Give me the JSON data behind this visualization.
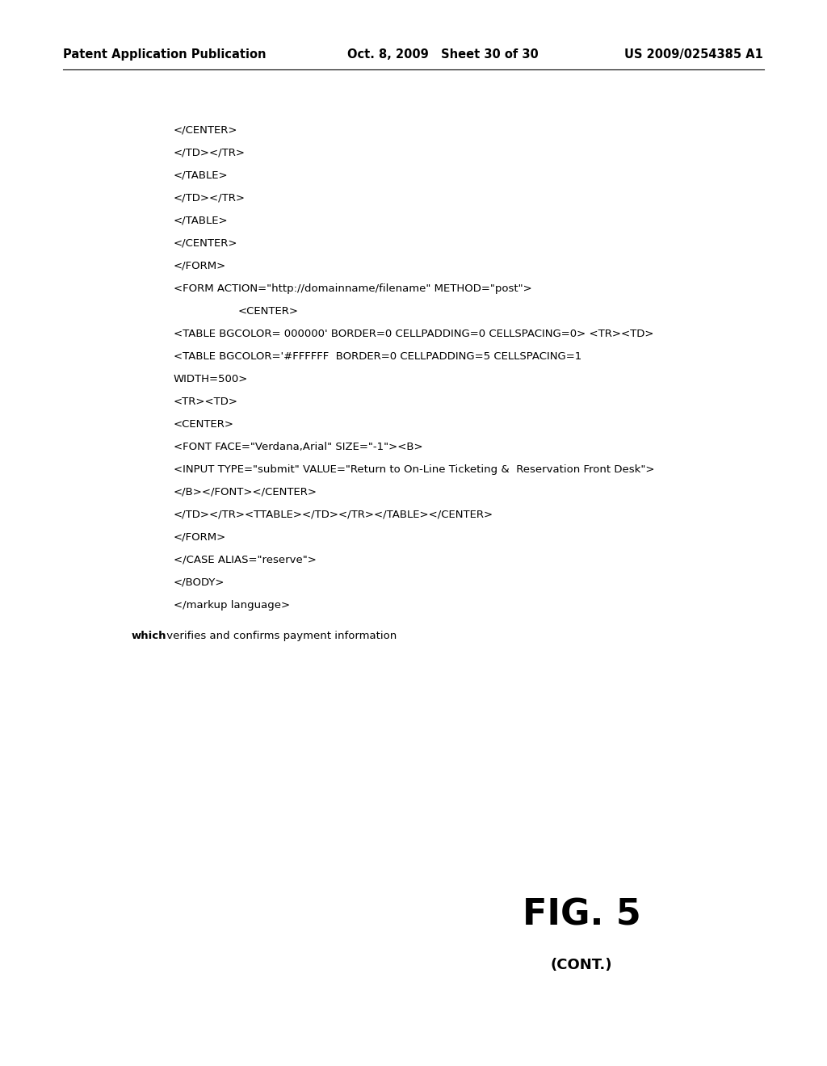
{
  "header_left": "Patent Application Publication",
  "header_middle": "Oct. 8, 2009   Sheet 30 of 30",
  "header_right": "US 2009/0254385 A1",
  "code_lines": [
    {
      "text": "</CENTER>",
      "indent": 0
    },
    {
      "text": "</TD></TR>",
      "indent": 0
    },
    {
      "text": "</TABLE>",
      "indent": 0
    },
    {
      "text": "</TD></TR>",
      "indent": 0
    },
    {
      "text": "</TABLE>",
      "indent": 0
    },
    {
      "text": "</CENTER>",
      "indent": 0
    },
    {
      "text": "</FORM>",
      "indent": 0
    },
    {
      "text": "<FORM ACTION=\"http://domainname/filename\" METHOD=\"post\">",
      "indent": 0
    },
    {
      "text": "<CENTER>",
      "indent": 1
    },
    {
      "text": "<TABLE BGCOLOR= 000000' BORDER=0 CELLPADDING=0 CELLSPACING=0> <TR><TD>",
      "indent": 0
    },
    {
      "text": "<TABLE BGCOLOR='#FFFFFF  BORDER=0 CELLPADDING=5 CELLSPACING=1",
      "indent": 0
    },
    {
      "text": "WIDTH=500>",
      "indent": 0
    },
    {
      "text": "<TR><TD>",
      "indent": 0
    },
    {
      "text": "<CENTER>",
      "indent": 0
    },
    {
      "text": "<FONT FACE=\"Verdana,Arial\" SIZE=\"-1\"><B>",
      "indent": 0
    },
    {
      "text": "<INPUT TYPE=\"submit\" VALUE=\"Return to On-Line Ticketing &  Reservation Front Desk\">",
      "indent": 0
    },
    {
      "text": "</B></FONT></CENTER>",
      "indent": 0
    },
    {
      "text": "</TD></TR><TTABLE></TD></TR></TABLE></CENTER>",
      "indent": 0
    },
    {
      "text": "</FORM>",
      "indent": 0
    },
    {
      "text": "</CASE ALIAS=\"reserve\">",
      "indent": 0
    },
    {
      "text": "</BODY>",
      "indent": 0
    },
    {
      "text": "</markup language>",
      "indent": 0
    }
  ],
  "caption_bold": "which",
  "caption_normal": " verifies and confirms payment information",
  "fig_label": "FIG. 5",
  "fig_cont": "(CONT.)",
  "background_color": "#ffffff",
  "text_color": "#000000"
}
